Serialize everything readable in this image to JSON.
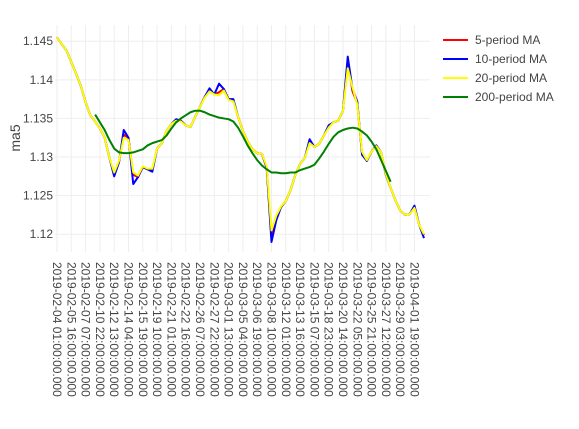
{
  "chart_data": {
    "type": "line",
    "y_label": "ma5",
    "categories": [
      "2019-02-04 01:00:00.000",
      null,
      null,
      "2019-02-05 16:00:00.000",
      null,
      null,
      "2019-02-07 07:00:00.000",
      null,
      null,
      "2019-02-10 22:00:00.000",
      null,
      null,
      "2019-02-12 13:00:00.000",
      null,
      null,
      "2019-02-14 04:00:00.000",
      null,
      null,
      "2019-02-15 19:00:00.000",
      null,
      null,
      "2019-02-19 10:00:00.000",
      null,
      null,
      "2019-02-21 01:00:00.000",
      null,
      null,
      "2019-02-22 16:00:00.000",
      null,
      null,
      "2019-02-26 07:00:00.000",
      null,
      null,
      "2019-02-27 22:00:00.000",
      null,
      null,
      "2019-03-01 13:00:00.000",
      null,
      null,
      "2019-03-05 04:00:00.000",
      null,
      null,
      "2019-03-06 19:00:00.000",
      null,
      null,
      "2019-03-08 10:00:00.000",
      null,
      null,
      "2019-03-12 01:00:00.000",
      null,
      null,
      "2019-03-13 16:00:00.000",
      null,
      null,
      "2019-03-15 07:00:00.000",
      null,
      null,
      "2019-03-18 23:00:00.000",
      null,
      null,
      "2019-03-20 14:00:00.000",
      null,
      null,
      "2019-03-22 05:00:00.000",
      null,
      null,
      "2019-03-25 21:00:00.000",
      null,
      null,
      "2019-03-27 12:00:00.000",
      null,
      null,
      "2019-03-29 03:00:00.000",
      null,
      null,
      "2019-04-01 19:00:00.000",
      null,
      null
    ],
    "series": [
      {
        "name": "5-period MA",
        "color": "#ff0000",
        "values": [
          1.1455,
          1.1446,
          1.1438,
          1.1423,
          1.1408,
          1.1392,
          1.1371,
          1.1354,
          1.1346,
          1.1337,
          1.1325,
          1.1299,
          1.1277,
          1.1293,
          1.1329,
          1.1325,
          1.1277,
          1.1274,
          1.1287,
          1.1284,
          1.1283,
          1.1311,
          1.1318,
          1.1334,
          1.1343,
          1.1348,
          1.1347,
          1.1341,
          1.1339,
          1.1352,
          1.1365,
          1.1378,
          1.1387,
          1.1381,
          1.1384,
          1.1388,
          1.1375,
          1.1373,
          1.1352,
          1.1334,
          1.132,
          1.131,
          1.1305,
          1.1304,
          1.1286,
          1.1195,
          1.1221,
          1.1235,
          1.1243,
          1.1257,
          1.1277,
          1.1291,
          1.1299,
          1.132,
          1.1313,
          1.1317,
          1.1328,
          1.1339,
          1.1345,
          1.1347,
          1.136,
          1.1425,
          1.1385,
          1.137,
          1.1305,
          1.1295,
          1.1307,
          1.1315,
          1.1306,
          1.1277,
          1.126,
          1.1244,
          1.1231,
          1.1225,
          1.1226,
          1.1235,
          1.1212,
          1.1199
        ]
      },
      {
        "name": "10-period MA",
        "color": "#0000ff",
        "values": [
          1.1455,
          1.1446,
          1.1438,
          1.1423,
          1.1408,
          1.1392,
          1.1371,
          1.1354,
          1.1346,
          1.1337,
          1.1325,
          1.1299,
          1.1275,
          1.1293,
          1.1335,
          1.1325,
          1.1265,
          1.1274,
          1.1287,
          1.1284,
          1.1281,
          1.1311,
          1.1318,
          1.1334,
          1.1343,
          1.1349,
          1.1347,
          1.1341,
          1.1339,
          1.1352,
          1.1365,
          1.1378,
          1.1389,
          1.1381,
          1.1395,
          1.1388,
          1.1375,
          1.1375,
          1.1352,
          1.1334,
          1.132,
          1.131,
          1.1305,
          1.1304,
          1.1286,
          1.119,
          1.1218,
          1.1235,
          1.1243,
          1.1257,
          1.1277,
          1.1291,
          1.1299,
          1.1323,
          1.1313,
          1.1317,
          1.1328,
          1.1341,
          1.1345,
          1.1347,
          1.136,
          1.143,
          1.1388,
          1.1372,
          1.1303,
          1.1295,
          1.1307,
          1.1315,
          1.1306,
          1.1277,
          1.126,
          1.1244,
          1.1231,
          1.1225,
          1.1226,
          1.1237,
          1.1212,
          1.1195
        ]
      },
      {
        "name": "20-period MA",
        "color": "#ffff00",
        "values": [
          1.1455,
          1.1446,
          1.1438,
          1.1423,
          1.1408,
          1.1392,
          1.1371,
          1.1354,
          1.1346,
          1.1337,
          1.1325,
          1.1299,
          1.128,
          1.1295,
          1.1325,
          1.1322,
          1.128,
          1.1276,
          1.1288,
          1.1285,
          1.1285,
          1.1311,
          1.1318,
          1.1334,
          1.1343,
          1.1347,
          1.1346,
          1.1341,
          1.1339,
          1.1352,
          1.1365,
          1.1377,
          1.1385,
          1.1381,
          1.138,
          1.1386,
          1.1374,
          1.1372,
          1.1352,
          1.1334,
          1.132,
          1.131,
          1.1305,
          1.1304,
          1.1288,
          1.1205,
          1.1224,
          1.1236,
          1.1243,
          1.1257,
          1.1277,
          1.1291,
          1.1299,
          1.1318,
          1.1313,
          1.1317,
          1.1328,
          1.1338,
          1.1345,
          1.1347,
          1.136,
          1.1415,
          1.139,
          1.1368,
          1.1307,
          1.1296,
          1.1307,
          1.1314,
          1.1306,
          1.1278,
          1.126,
          1.1244,
          1.1231,
          1.1225,
          1.1226,
          1.1234,
          1.1212,
          1.12
        ]
      },
      {
        "name": "200-period MA",
        "color": "#008000",
        "values": [
          null,
          null,
          null,
          null,
          null,
          null,
          null,
          null,
          1.1355,
          1.1345,
          1.1335,
          1.1322,
          1.1311,
          1.1306,
          1.1305,
          1.1305,
          1.1306,
          1.1308,
          1.131,
          1.1315,
          1.1318,
          1.132,
          1.1322,
          1.1328,
          1.1337,
          1.1345,
          1.135,
          1.1354,
          1.1358,
          1.136,
          1.136,
          1.1358,
          1.1355,
          1.1353,
          1.1351,
          1.135,
          1.1349,
          1.1346,
          1.1338,
          1.1327,
          1.1315,
          1.1305,
          1.1296,
          1.1289,
          1.1284,
          1.128,
          1.128,
          1.1279,
          1.1279,
          1.128,
          1.128,
          1.1283,
          1.1285,
          1.1287,
          1.129,
          1.1298,
          1.1307,
          1.1317,
          1.1326,
          1.1332,
          1.1335,
          1.1337,
          1.1338,
          1.1337,
          1.1333,
          1.1328,
          1.132,
          1.131,
          1.1296,
          1.1282,
          1.1268,
          null,
          null,
          null,
          null,
          null,
          null,
          null
        ]
      }
    ],
    "ylim": [
      1.1177,
      1.1471
    ],
    "yticks": [
      1.12,
      1.125,
      1.13,
      1.135,
      1.14,
      1.145
    ],
    "grid": true,
    "legend": "top-right"
  }
}
